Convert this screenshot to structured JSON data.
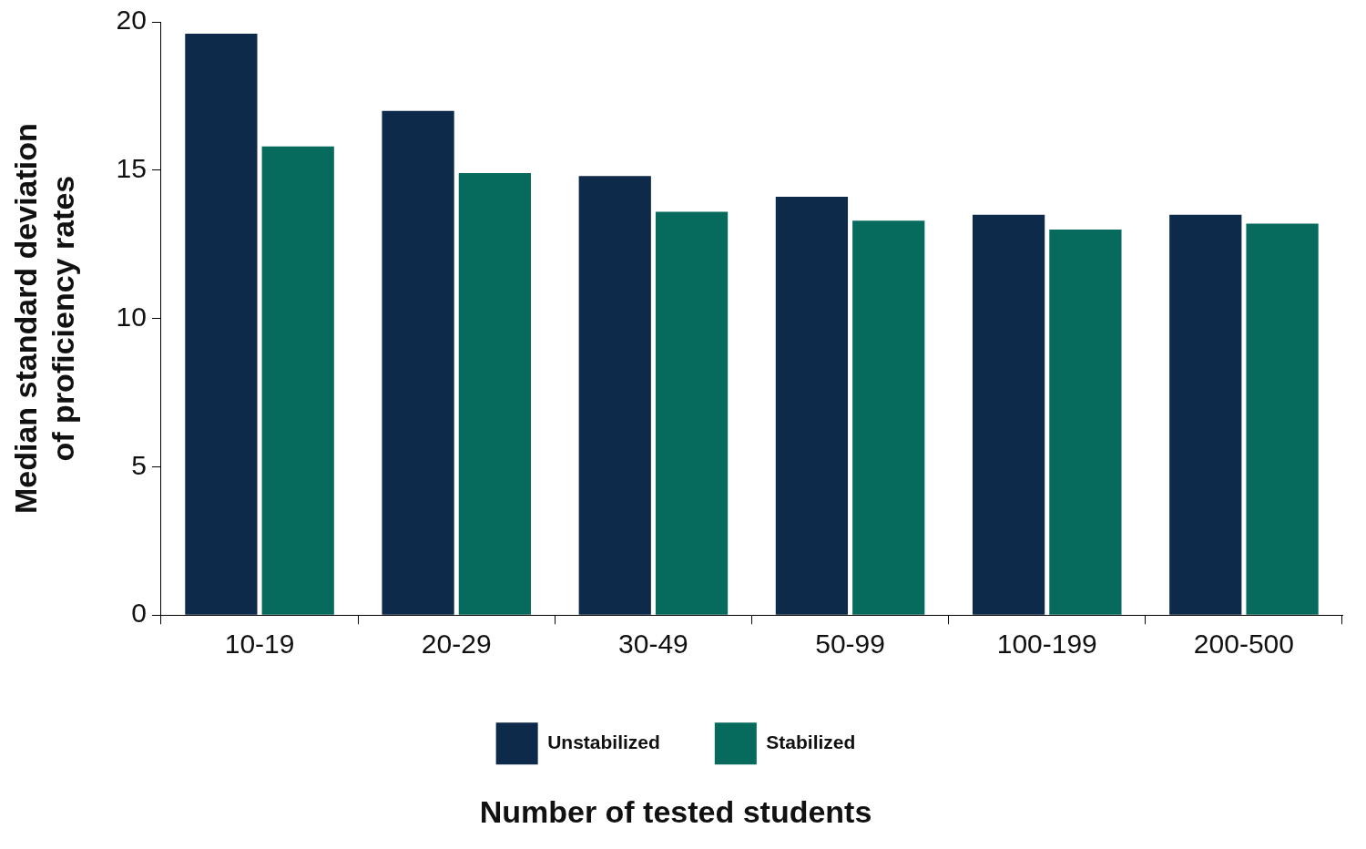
{
  "chart_data": {
    "type": "bar",
    "x_label": "Number of tested students",
    "y_label": [
      "Median standard deviation",
      "of proficiency rates"
    ],
    "categories": [
      "10-19",
      "20-29",
      "30-49",
      "50-99",
      "100-199",
      "200-500"
    ],
    "series": [
      {
        "name": "Unstabilized",
        "color": "#0e2a4a",
        "values": [
          19.6,
          17.0,
          14.8,
          14.1,
          13.5,
          13.5
        ]
      },
      {
        "name": "Stabilized",
        "color": "#066b5c",
        "values": [
          15.8,
          14.9,
          13.6,
          13.3,
          13.0,
          13.2
        ]
      }
    ],
    "ylim": [
      0,
      20
    ],
    "yticks": [
      0,
      5,
      10,
      15,
      20
    ],
    "grid": false,
    "legend": "bottom"
  }
}
